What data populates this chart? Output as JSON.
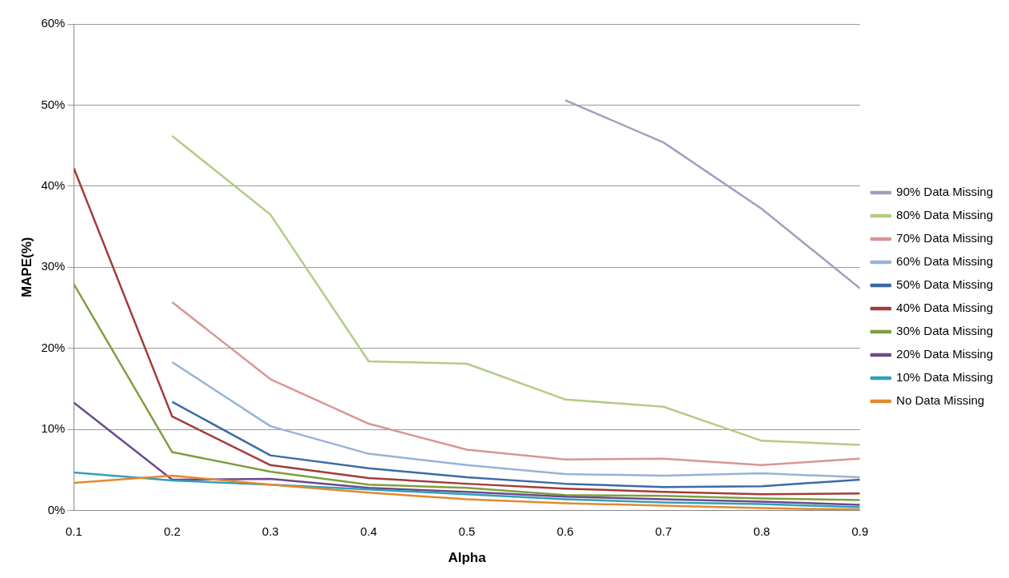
{
  "chart_data": {
    "type": "line",
    "xlabel": "Alpha",
    "ylabel": "MAPE(%)",
    "categories": [
      "0.1",
      "0.2",
      "0.3",
      "0.4",
      "0.5",
      "0.6",
      "0.7",
      "0.8",
      "0.9"
    ],
    "ylim": [
      0,
      60
    ],
    "yticks": [
      {
        "value": 0,
        "label": "0%"
      },
      {
        "value": 10,
        "label": "10%"
      },
      {
        "value": 20,
        "label": "20%"
      },
      {
        "value": 30,
        "label": "30%"
      },
      {
        "value": 40,
        "label": "40%"
      },
      {
        "value": 50,
        "label": "50%"
      },
      {
        "value": 60,
        "label": "60%"
      }
    ],
    "grid": "y",
    "legend": "right",
    "marker": "none",
    "line_style": "solid",
    "series": [
      {
        "name": "90% Data Missing",
        "color": "#a99bbd",
        "values": [
          null,
          null,
          null,
          null,
          null,
          50.6,
          45.4,
          37.2,
          27.4
        ]
      },
      {
        "name": "80% Data Missing",
        "color": "#b3cc82",
        "values": [
          null,
          46.2,
          36.5,
          18.4,
          18.1,
          13.7,
          12.8,
          8.6,
          8.1
        ]
      },
      {
        "name": "70% Data Missing",
        "color": "#d99594",
        "values": [
          null,
          25.7,
          16.2,
          10.7,
          7.5,
          6.3,
          6.4,
          5.6,
          6.4
        ]
      },
      {
        "name": "60% Data Missing",
        "color": "#95b3d7",
        "values": [
          null,
          18.3,
          10.4,
          7.0,
          5.6,
          4.5,
          4.3,
          4.6,
          4.1
        ]
      },
      {
        "name": "50% Data Missing",
        "color": "#3a6aa8",
        "values": [
          null,
          13.4,
          6.8,
          5.2,
          4.1,
          3.3,
          2.9,
          3.0,
          3.8
        ]
      },
      {
        "name": "40% Data Missing",
        "color": "#a33b39",
        "values": [
          42.2,
          11.6,
          5.6,
          4.0,
          3.3,
          2.7,
          2.3,
          2.0,
          2.1
        ]
      },
      {
        "name": "30% Data Missing",
        "color": "#7f9f3c",
        "values": [
          27.9,
          7.2,
          4.8,
          3.2,
          2.8,
          1.9,
          1.8,
          1.5,
          1.3
        ]
      },
      {
        "name": "20% Data Missing",
        "color": "#6a4a8c",
        "values": [
          13.3,
          3.8,
          3.9,
          2.8,
          2.3,
          1.7,
          1.4,
          1.1,
          0.7
        ]
      },
      {
        "name": "10% Data Missing",
        "color": "#31a0b8",
        "values": [
          4.7,
          3.7,
          3.2,
          2.6,
          2.0,
          1.4,
          1.0,
          0.8,
          0.4
        ]
      },
      {
        "name": "No Data Missing",
        "color": "#e6872f",
        "values": [
          3.4,
          4.3,
          3.2,
          2.2,
          1.4,
          0.9,
          0.6,
          0.3,
          0.1
        ]
      }
    ]
  }
}
